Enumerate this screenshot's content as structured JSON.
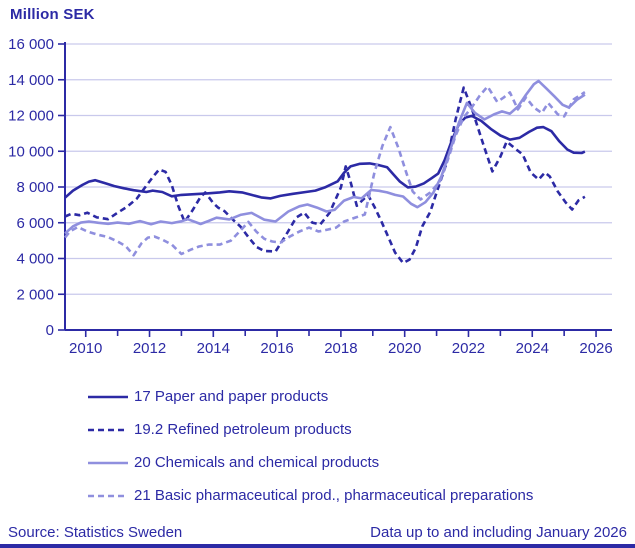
{
  "title": "Million SEK",
  "footer": {
    "source": "Source: Statistics Sweden",
    "note": "Data up to and including January 2026"
  },
  "colors": {
    "dark_blue": "#2c2aa5",
    "light_blue": "#8f8fde",
    "grid": "#c9c9ec",
    "background": "#ffffff"
  },
  "chart_data": {
    "type": "line",
    "title": "Million SEK",
    "ylabel": "Million SEK",
    "xlabel": "",
    "grid": true,
    "legend_position": "bottom",
    "ylim": [
      0,
      16000
    ],
    "ytick_step": 2000,
    "ytick_labels": [
      "0",
      "2 000",
      "4 000",
      "6 000",
      "8 000",
      "10 000",
      "12 000",
      "14 000",
      "16 000"
    ],
    "xlim": [
      2009.35,
      2026.5
    ],
    "xticks_major": [
      2010,
      2012,
      2014,
      2016,
      2018,
      2020,
      2022,
      2024,
      2026
    ],
    "xticks_minor": [
      2011,
      2013,
      2015,
      2017,
      2019,
      2021,
      2023,
      2025
    ],
    "series": [
      {
        "name": "17 Paper and paper products",
        "color": "#2c2aa5",
        "dashed": false,
        "points": [
          [
            2009.35,
            7400
          ],
          [
            2009.6,
            7800
          ],
          [
            2009.9,
            8120
          ],
          [
            2010.1,
            8300
          ],
          [
            2010.3,
            8380
          ],
          [
            2010.6,
            8220
          ],
          [
            2010.9,
            8050
          ],
          [
            2011.2,
            7930
          ],
          [
            2011.5,
            7820
          ],
          [
            2011.9,
            7720
          ],
          [
            2012.1,
            7800
          ],
          [
            2012.4,
            7720
          ],
          [
            2012.7,
            7480
          ],
          [
            2013.0,
            7560
          ],
          [
            2013.4,
            7600
          ],
          [
            2013.8,
            7640
          ],
          [
            2014.2,
            7700
          ],
          [
            2014.5,
            7760
          ],
          [
            2014.9,
            7700
          ],
          [
            2015.2,
            7560
          ],
          [
            2015.5,
            7420
          ],
          [
            2015.8,
            7360
          ],
          [
            2016.1,
            7500
          ],
          [
            2016.5,
            7620
          ],
          [
            2016.9,
            7720
          ],
          [
            2017.2,
            7800
          ],
          [
            2017.5,
            7980
          ],
          [
            2017.9,
            8320
          ],
          [
            2018.1,
            8800
          ],
          [
            2018.3,
            9150
          ],
          [
            2018.6,
            9300
          ],
          [
            2018.9,
            9320
          ],
          [
            2019.2,
            9220
          ],
          [
            2019.45,
            9100
          ],
          [
            2019.65,
            8700
          ],
          [
            2019.85,
            8300
          ],
          [
            2020.1,
            7980
          ],
          [
            2020.35,
            8020
          ],
          [
            2020.6,
            8200
          ],
          [
            2020.85,
            8500
          ],
          [
            2021.05,
            8750
          ],
          [
            2021.25,
            9500
          ],
          [
            2021.5,
            10700
          ],
          [
            2021.7,
            11500
          ],
          [
            2021.9,
            11880
          ],
          [
            2022.1,
            11980
          ],
          [
            2022.4,
            11700
          ],
          [
            2022.7,
            11250
          ],
          [
            2023.0,
            10880
          ],
          [
            2023.3,
            10650
          ],
          [
            2023.6,
            10750
          ],
          [
            2023.9,
            11080
          ],
          [
            2024.15,
            11320
          ],
          [
            2024.35,
            11350
          ],
          [
            2024.6,
            11120
          ],
          [
            2024.85,
            10550
          ],
          [
            2025.1,
            10100
          ],
          [
            2025.3,
            9920
          ],
          [
            2025.55,
            9900
          ],
          [
            2025.65,
            9980
          ]
        ]
      },
      {
        "name": "19.2 Refined petroleum products",
        "color": "#2c2aa5",
        "dashed": true,
        "points": [
          [
            2009.35,
            6350
          ],
          [
            2009.55,
            6500
          ],
          [
            2009.8,
            6420
          ],
          [
            2010.05,
            6560
          ],
          [
            2010.35,
            6300
          ],
          [
            2010.7,
            6200
          ],
          [
            2011.0,
            6560
          ],
          [
            2011.3,
            6900
          ],
          [
            2011.6,
            7350
          ],
          [
            2011.85,
            7950
          ],
          [
            2012.1,
            8550
          ],
          [
            2012.3,
            8980
          ],
          [
            2012.5,
            8850
          ],
          [
            2012.7,
            8100
          ],
          [
            2012.9,
            6950
          ],
          [
            2013.1,
            6050
          ],
          [
            2013.35,
            6700
          ],
          [
            2013.6,
            7450
          ],
          [
            2013.75,
            7690
          ],
          [
            2014.0,
            7100
          ],
          [
            2014.15,
            6850
          ],
          [
            2014.35,
            6650
          ],
          [
            2014.6,
            6200
          ],
          [
            2014.85,
            5790
          ],
          [
            2015.1,
            5200
          ],
          [
            2015.35,
            4650
          ],
          [
            2015.6,
            4420
          ],
          [
            2015.95,
            4390
          ],
          [
            2016.25,
            5230
          ],
          [
            2016.6,
            6290
          ],
          [
            2016.85,
            6570
          ],
          [
            2017.1,
            6010
          ],
          [
            2017.35,
            5900
          ],
          [
            2017.65,
            6570
          ],
          [
            2018.0,
            7980
          ],
          [
            2018.15,
            9150
          ],
          [
            2018.3,
            8300
          ],
          [
            2018.5,
            6950
          ],
          [
            2018.7,
            7300
          ],
          [
            2018.85,
            7550
          ],
          [
            2019.05,
            6900
          ],
          [
            2019.25,
            6150
          ],
          [
            2019.5,
            5150
          ],
          [
            2019.7,
            4330
          ],
          [
            2019.95,
            3750
          ],
          [
            2020.15,
            3940
          ],
          [
            2020.35,
            4600
          ],
          [
            2020.55,
            5790
          ],
          [
            2020.8,
            6600
          ],
          [
            2021.0,
            7690
          ],
          [
            2021.3,
            9260
          ],
          [
            2021.6,
            11800
          ],
          [
            2021.85,
            13560
          ],
          [
            2022.1,
            12400
          ],
          [
            2022.3,
            11300
          ],
          [
            2022.5,
            10200
          ],
          [
            2022.75,
            8870
          ],
          [
            2023.0,
            9700
          ],
          [
            2023.2,
            10540
          ],
          [
            2023.5,
            10100
          ],
          [
            2023.7,
            9820
          ],
          [
            2023.95,
            8810
          ],
          [
            2024.2,
            8420
          ],
          [
            2024.4,
            8810
          ],
          [
            2024.55,
            8590
          ],
          [
            2024.8,
            7750
          ],
          [
            2025.05,
            7130
          ],
          [
            2025.25,
            6740
          ],
          [
            2025.45,
            7250
          ],
          [
            2025.65,
            7450
          ]
        ]
      },
      {
        "name": "20 Chemicals and chemical products",
        "color": "#8f8fde",
        "dashed": false,
        "points": [
          [
            2009.35,
            5400
          ],
          [
            2009.6,
            5800
          ],
          [
            2009.85,
            6010
          ],
          [
            2010.1,
            6070
          ],
          [
            2010.4,
            6000
          ],
          [
            2010.7,
            5940
          ],
          [
            2011.0,
            6010
          ],
          [
            2011.35,
            5940
          ],
          [
            2011.7,
            6090
          ],
          [
            2012.05,
            5920
          ],
          [
            2012.35,
            6070
          ],
          [
            2012.7,
            5980
          ],
          [
            2013.0,
            6080
          ],
          [
            2013.2,
            6200
          ],
          [
            2013.6,
            5930
          ],
          [
            2013.85,
            6100
          ],
          [
            2014.1,
            6280
          ],
          [
            2014.5,
            6190
          ],
          [
            2014.85,
            6440
          ],
          [
            2015.2,
            6550
          ],
          [
            2015.6,
            6170
          ],
          [
            2015.95,
            6070
          ],
          [
            2016.35,
            6630
          ],
          [
            2016.7,
            6920
          ],
          [
            2016.95,
            7020
          ],
          [
            2017.25,
            6850
          ],
          [
            2017.55,
            6630
          ],
          [
            2017.8,
            6720
          ],
          [
            2018.1,
            7240
          ],
          [
            2018.4,
            7440
          ],
          [
            2018.65,
            7360
          ],
          [
            2018.95,
            7830
          ],
          [
            2019.2,
            7790
          ],
          [
            2019.45,
            7700
          ],
          [
            2019.7,
            7560
          ],
          [
            2019.95,
            7470
          ],
          [
            2020.2,
            7060
          ],
          [
            2020.4,
            6870
          ],
          [
            2020.65,
            7150
          ],
          [
            2020.9,
            7690
          ],
          [
            2021.15,
            8600
          ],
          [
            2021.4,
            9900
          ],
          [
            2021.7,
            11600
          ],
          [
            2021.95,
            12700
          ],
          [
            2022.2,
            12150
          ],
          [
            2022.5,
            11780
          ],
          [
            2022.8,
            12060
          ],
          [
            2023.05,
            12230
          ],
          [
            2023.3,
            12100
          ],
          [
            2023.55,
            12500
          ],
          [
            2023.8,
            13150
          ],
          [
            2024.05,
            13750
          ],
          [
            2024.2,
            13930
          ],
          [
            2024.45,
            13500
          ],
          [
            2024.7,
            13060
          ],
          [
            2024.95,
            12600
          ],
          [
            2025.15,
            12450
          ],
          [
            2025.4,
            12880
          ],
          [
            2025.65,
            13170
          ]
        ]
      },
      {
        "name": "21 Basic pharmaceutical prod., pharmaceutical preparations",
        "color": "#8f8fde",
        "dashed": true,
        "points": [
          [
            2009.35,
            5170
          ],
          [
            2009.5,
            5510
          ],
          [
            2009.75,
            5760
          ],
          [
            2010.05,
            5510
          ],
          [
            2010.35,
            5340
          ],
          [
            2010.7,
            5200
          ],
          [
            2011.0,
            4950
          ],
          [
            2011.25,
            4700
          ],
          [
            2011.5,
            4180
          ],
          [
            2011.75,
            4850
          ],
          [
            2011.95,
            5170
          ],
          [
            2012.15,
            5230
          ],
          [
            2012.4,
            5060
          ],
          [
            2012.7,
            4780
          ],
          [
            2013.0,
            4250
          ],
          [
            2013.3,
            4500
          ],
          [
            2013.55,
            4670
          ],
          [
            2013.85,
            4780
          ],
          [
            2014.2,
            4780
          ],
          [
            2014.55,
            5000
          ],
          [
            2014.85,
            5560
          ],
          [
            2015.1,
            6050
          ],
          [
            2015.35,
            5500
          ],
          [
            2015.6,
            5100
          ],
          [
            2015.85,
            4950
          ],
          [
            2016.1,
            4890
          ],
          [
            2016.4,
            5230
          ],
          [
            2016.7,
            5510
          ],
          [
            2017.0,
            5730
          ],
          [
            2017.3,
            5510
          ],
          [
            2017.6,
            5620
          ],
          [
            2017.85,
            5730
          ],
          [
            2018.1,
            6070
          ],
          [
            2018.45,
            6290
          ],
          [
            2018.75,
            6460
          ],
          [
            2019.05,
            8800
          ],
          [
            2019.3,
            10300
          ],
          [
            2019.55,
            11350
          ],
          [
            2019.8,
            10200
          ],
          [
            2020.05,
            8800
          ],
          [
            2020.25,
            7750
          ],
          [
            2020.5,
            7300
          ],
          [
            2020.8,
            7690
          ],
          [
            2021.1,
            8300
          ],
          [
            2021.35,
            9500
          ],
          [
            2021.6,
            10900
          ],
          [
            2021.85,
            11900
          ],
          [
            2022.1,
            12450
          ],
          [
            2022.35,
            13100
          ],
          [
            2022.6,
            13620
          ],
          [
            2022.9,
            12760
          ],
          [
            2023.1,
            13000
          ],
          [
            2023.3,
            13290
          ],
          [
            2023.55,
            12340
          ],
          [
            2023.8,
            13010
          ],
          [
            2024.05,
            12450
          ],
          [
            2024.3,
            12140
          ],
          [
            2024.5,
            12700
          ],
          [
            2024.8,
            12060
          ],
          [
            2025.0,
            11950
          ],
          [
            2025.3,
            12900
          ],
          [
            2025.65,
            13310
          ]
        ]
      }
    ]
  }
}
